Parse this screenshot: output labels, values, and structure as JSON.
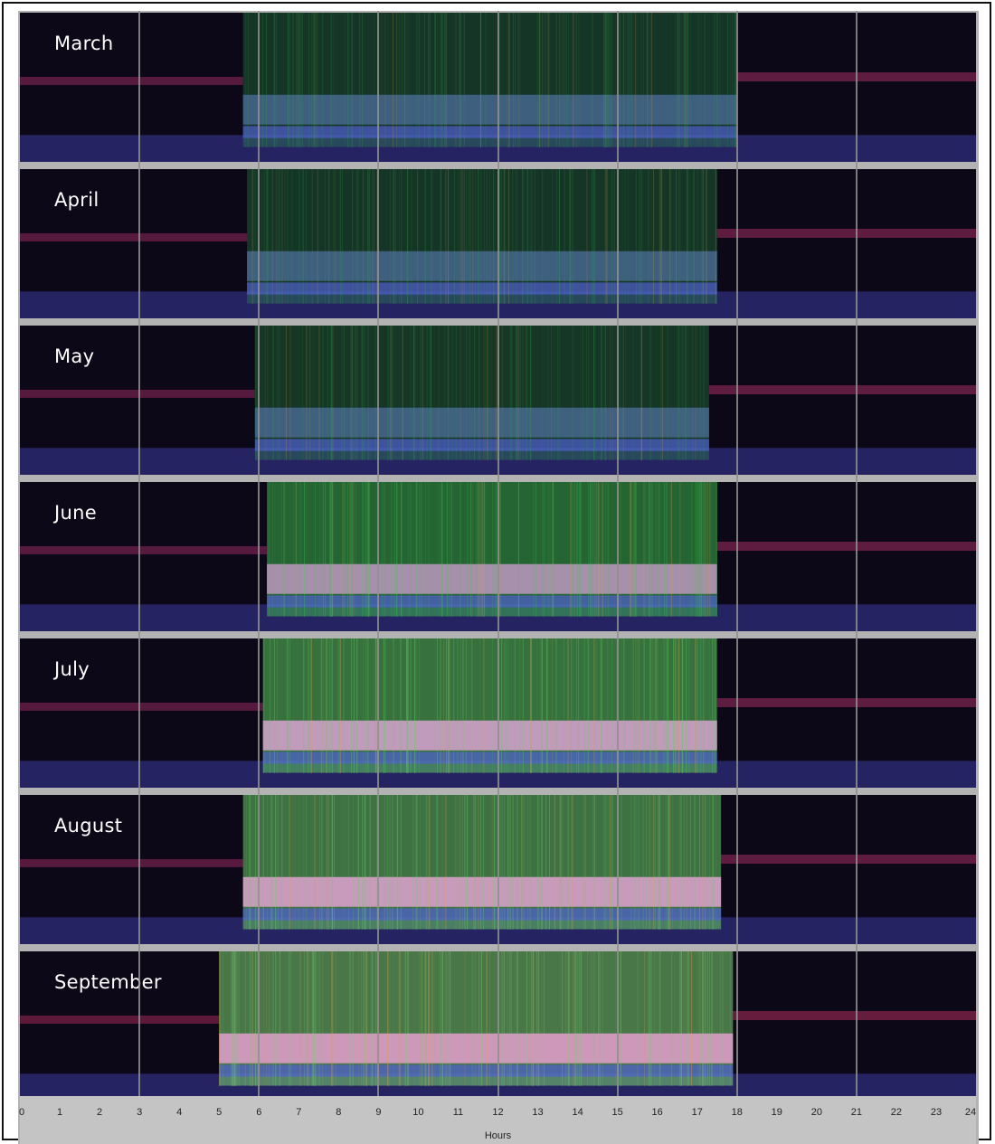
{
  "chart_data": {
    "type": "heatmap",
    "title": "",
    "xlabel": "Hours",
    "ylabel": "",
    "xlim": [
      0,
      24
    ],
    "x_ticks": [
      "0",
      "1",
      "2",
      "3",
      "4",
      "5",
      "6",
      "7",
      "8",
      "9",
      "10",
      "11",
      "12",
      "13",
      "14",
      "15",
      "16",
      "17",
      "18",
      "19",
      "20",
      "21",
      "22",
      "23",
      "24"
    ],
    "gridline_hours": [
      3,
      6,
      9,
      12,
      15,
      18,
      21
    ],
    "panels": [
      {
        "month": "March",
        "activity_start_hour": 5.6,
        "activity_end_hour": 18.0,
        "intensity": 0.3,
        "colors": {
          "low": "#3a3aa0",
          "mid": "#6a8ad8",
          "high": "#2fa84a",
          "night": "#b0306a"
        }
      },
      {
        "month": "April",
        "activity_start_hour": 5.7,
        "activity_end_hour": 17.5,
        "intensity": 0.3,
        "colors": {
          "low": "#3a3aa0",
          "mid": "#6a8ad8",
          "high": "#2fa84a",
          "night": "#b0306a"
        }
      },
      {
        "month": "May",
        "activity_start_hour": 5.9,
        "activity_end_hour": 17.3,
        "intensity": 0.32,
        "colors": {
          "low": "#3a3aa0",
          "mid": "#6a8ad8",
          "high": "#2fa84a",
          "night": "#b0306a"
        }
      },
      {
        "month": "June",
        "activity_start_hour": 6.2,
        "activity_end_hour": 17.5,
        "intensity": 0.75,
        "colors": {
          "low": "#3a3aa0",
          "mid": "#d8a0d8",
          "high": "#3fc850",
          "night": "#b0306a"
        }
      },
      {
        "month": "July",
        "activity_start_hour": 6.1,
        "activity_end_hour": 17.5,
        "intensity": 0.85,
        "colors": {
          "low": "#3a3aa0",
          "mid": "#e8a8e0",
          "high": "#5ed060",
          "night": "#b0306a"
        }
      },
      {
        "month": "August",
        "activity_start_hour": 5.6,
        "activity_end_hour": 17.6,
        "intensity": 0.85,
        "colors": {
          "low": "#3a3aa0",
          "mid": "#f0a8e0",
          "high": "#6ad068",
          "night": "#b0306a"
        }
      },
      {
        "month": "September",
        "activity_start_hour": 5.0,
        "activity_end_hour": 17.9,
        "intensity": 0.9,
        "colors": {
          "low": "#3a3aa0",
          "mid": "#f0a0d8",
          "high": "#7ad070",
          "night": "#c03060"
        }
      }
    ]
  }
}
